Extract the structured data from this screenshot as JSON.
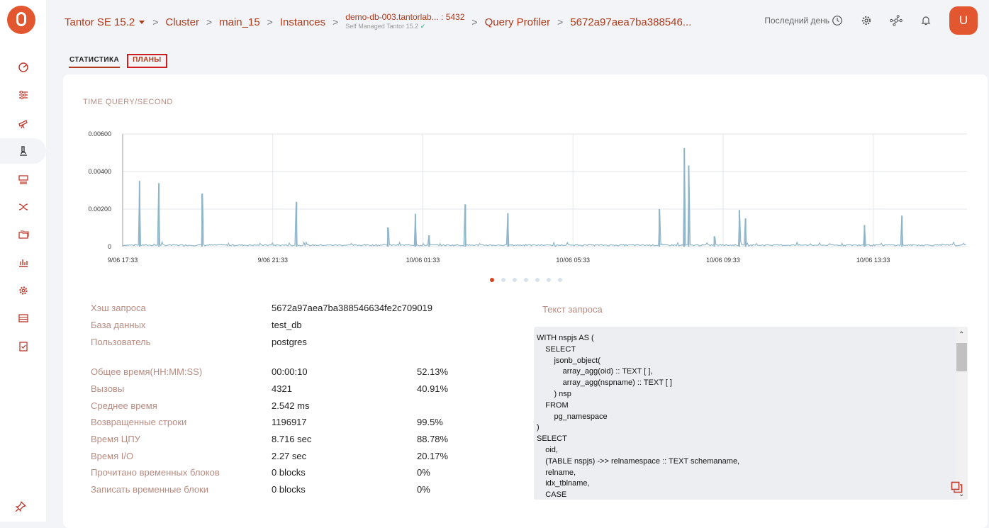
{
  "breadcrumbs": {
    "product": "Tantor SE 15.2",
    "cluster": "Cluster",
    "main": "main_15",
    "instances": "Instances",
    "instance_name": "demo-db-003.tantorlab...",
    "instance_port": ": 5432",
    "instance_sub": "Self Managed Tantor 15.2",
    "profiler": "Query Profiler",
    "hash": "5672a97aea7ba388546..."
  },
  "toolbar": {
    "period": "Последний день",
    "avatar": "U"
  },
  "tabs": {
    "stats": "СТАТИСТИКА",
    "plans": "ПЛАНЫ"
  },
  "chart_title": "TIME QUERY/SECOND",
  "chart_data": {
    "type": "line",
    "title": "TIME QUERY/SECOND",
    "yticks": [
      "0",
      "0.00200",
      "0.00400",
      "0.00600"
    ],
    "ylim": [
      0,
      0.006
    ],
    "xticks": [
      "9/06 17:33",
      "9/06 21:33",
      "10/06 01:33",
      "10/06 05:33",
      "10/06 09:33",
      "10/06 13:33"
    ],
    "spikes_hours": [
      1.35,
      2.9,
      6.35,
      13.9,
      21.2,
      23.4,
      24.5,
      27.4,
      30.8,
      34.6,
      42.9,
      44.9,
      45.25,
      47.3,
      49.3,
      49.8,
      59.3,
      62.3
    ],
    "spikes_values": [
      0.0035,
      0.00338,
      0.00282,
      0.00238,
      0.00102,
      0.00175,
      0.0006,
      0.00225,
      0.00178,
      5e-05,
      0.002,
      0.00525,
      0.00432,
      0.00055,
      0.00195,
      0.0015,
      0.00115,
      0.00165
    ],
    "grid": true
  },
  "pagination": {
    "count": 7,
    "active": 0
  },
  "stats": {
    "hash_label": "Хэш запроса",
    "hash": "5672a97aea7ba388546634fe2c709019",
    "db_label": "База данных",
    "db": "test_db",
    "user_label": "Пользователь",
    "user": "postgres",
    "metrics": [
      {
        "label": "Общее время(HH:MM:SS)",
        "value": "00:00:10",
        "pct": "52.13%"
      },
      {
        "label": "Вызовы",
        "value": "4321",
        "pct": "40.91%"
      },
      {
        "label": "Среднее время",
        "value": "2.542 ms",
        "pct": ""
      },
      {
        "label": "Возвращенные строки",
        "value": "1196917",
        "pct": "99.5%"
      },
      {
        "label": "Время ЦПУ",
        "value": "8.716 sec",
        "pct": "88.78%"
      },
      {
        "label": "Время I/O",
        "value": "2.27 sec",
        "pct": "20.17%"
      },
      {
        "label": "Прочитано временных блоков",
        "value": "0 blocks",
        "pct": "0%"
      },
      {
        "label": "Записать временные блоки",
        "value": "0 blocks",
        "pct": "0%"
      }
    ]
  },
  "query": {
    "title": "Текст запроса",
    "text": "WITH nspjs AS (\n    SELECT\n        jsonb_object(\n            array_agg(oid) :: TEXT [ ],\n            array_agg(nspname) :: TEXT [ ]\n        ) nsp\n    FROM\n        pg_namespace\n)\nSELECT\n    oid,\n    (TABLE nspjs) ->> relnamespace :: TEXT schemaname,\n    relname,\n    idx_tblname,\n    CASE"
  }
}
